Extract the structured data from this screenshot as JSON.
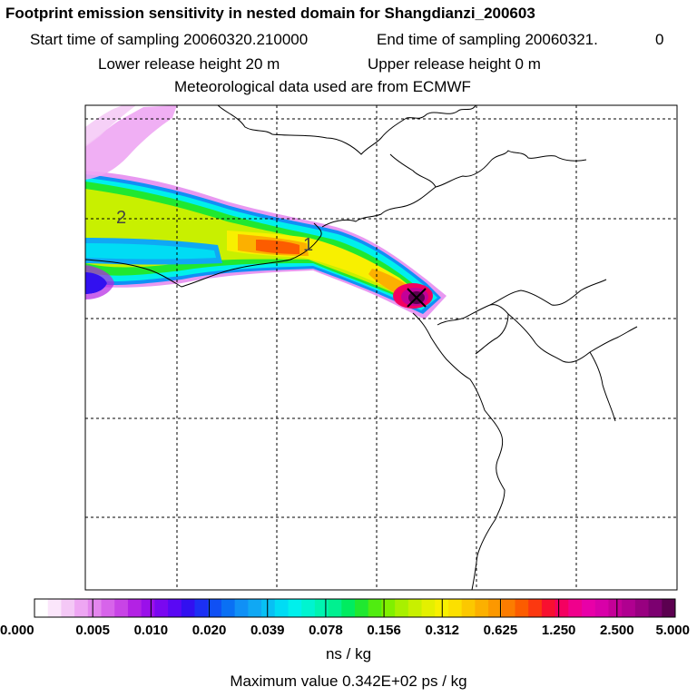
{
  "header": {
    "title": "Footprint emission sensitivity in nested domain for Shangdianzi_200603",
    "start_label": "Start time of sampling 20060320.210000",
    "end_label": "End time of sampling 20060321.",
    "end_suffix": "0",
    "lower_label": "Lower release height   20 m",
    "upper_label": "Upper release height    0 m",
    "met_label": "Meteorological data used are from ECMWF"
  },
  "chart_data": {
    "type": "heatmap",
    "title": "Footprint emission sensitivity in nested domain for Shangdianzi_200603",
    "colorbar": {
      "tick_labels": [
        "0.000",
        "0.005",
        "0.010",
        "0.020",
        "0.039",
        "0.078",
        "0.156",
        "0.312",
        "0.625",
        "1.250",
        "2.500",
        "5.000"
      ],
      "colors": [
        "#ffffff",
        "#fbe6fb",
        "#f4c8f6",
        "#eea6f3",
        "#e486ee",
        "#d764ea",
        "#c844e6",
        "#b322e4",
        "#9a10ea",
        "#7a08f0",
        "#5a08f4",
        "#3210f0",
        "#1c30f4",
        "#1050f4",
        "#0a70f4",
        "#1090f6",
        "#10a8f4",
        "#08c0f4",
        "#00dcf4",
        "#00f0ec",
        "#00f4d0",
        "#00f4b0",
        "#00f090",
        "#00ec60",
        "#20e830",
        "#50ec10",
        "#80f000",
        "#a8f000",
        "#c8f000",
        "#e4f000",
        "#f8f000",
        "#fce000",
        "#fcc800",
        "#fcb000",
        "#fc9800",
        "#fc7c00",
        "#fc5c00",
        "#fc3810",
        "#f81030",
        "#f40060",
        "#f0008c",
        "#e800a8",
        "#d800a8",
        "#c40098",
        "#b00090",
        "#980080",
        "#7c0070",
        "#5c0050"
      ],
      "unit": "ns / kg"
    },
    "contour_labels": [
      "2",
      "1"
    ],
    "plume_peak_marker": "receptor (Shangdianzi)",
    "max_value_text": "Maximum value  0.342E+02 ps / kg",
    "grid": true
  }
}
